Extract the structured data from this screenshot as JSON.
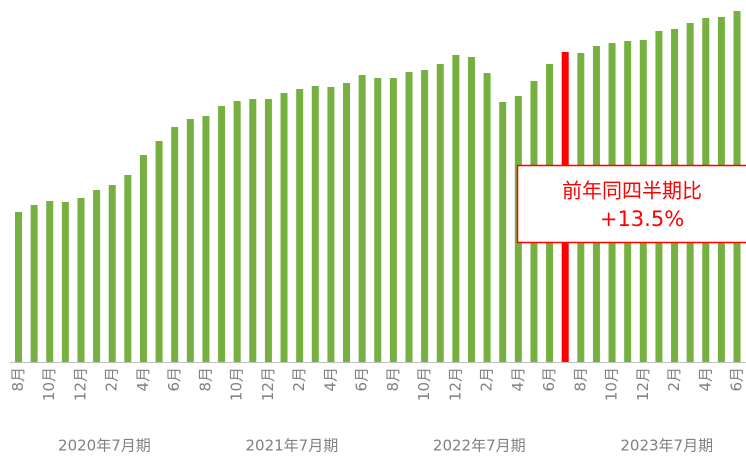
{
  "chart_data": {
    "type": "bar",
    "categories": [
      "8月",
      null,
      "10月",
      null,
      "12月",
      null,
      "2月",
      null,
      "4月",
      null,
      "6月",
      null,
      "8月",
      null,
      "10月",
      null,
      "12月",
      null,
      "2月",
      null,
      "4月",
      null,
      "6月",
      null,
      "8月",
      null,
      "10月",
      null,
      "12月",
      null,
      "2月",
      null,
      "4月",
      null,
      "6月",
      null,
      "8月",
      null,
      "10月",
      null,
      "12月",
      null,
      "2月",
      null,
      "4月",
      null,
      "6月"
    ],
    "values": [
      150,
      157,
      161,
      160,
      164,
      172,
      177,
      187,
      207,
      221,
      235,
      243,
      246,
      256,
      261,
      263,
      263,
      269,
      273,
      276,
      275,
      279,
      287,
      284,
      284,
      290,
      292,
      298,
      307,
      305,
      289,
      260,
      266,
      281,
      298,
      310,
      309,
      316,
      319,
      321,
      322,
      331,
      333,
      339,
      344,
      345,
      351
    ],
    "colors": [
      "#76b041",
      "#76b041",
      "#76b041",
      "#76b041",
      "#76b041",
      "#76b041",
      "#76b041",
      "#76b041",
      "#76b041",
      "#76b041",
      "#76b041",
      "#76b041",
      "#76b041",
      "#76b041",
      "#76b041",
      "#76b041",
      "#76b041",
      "#76b041",
      "#76b041",
      "#76b041",
      "#76b041",
      "#76b041",
      "#76b041",
      "#76b041",
      "#76b041",
      "#76b041",
      "#76b041",
      "#76b041",
      "#76b041",
      "#76b041",
      "#76b041",
      "#76b041",
      "#76b041",
      "#76b041",
      "#76b041",
      "#ff0000",
      "#76b041",
      "#76b041",
      "#76b041",
      "#76b041",
      "#76b041",
      "#76b041",
      "#76b041",
      "#76b041",
      "#76b041",
      "#76b041",
      "#76b041"
    ],
    "groups": [
      "2020年7月期",
      "2021年7月期",
      "2022年7月期",
      "2023年7月期"
    ],
    "ylim": [
      0,
      362
    ],
    "annotation": {
      "line1": "前年同四半期比",
      "line2": "+13.5%"
    }
  }
}
